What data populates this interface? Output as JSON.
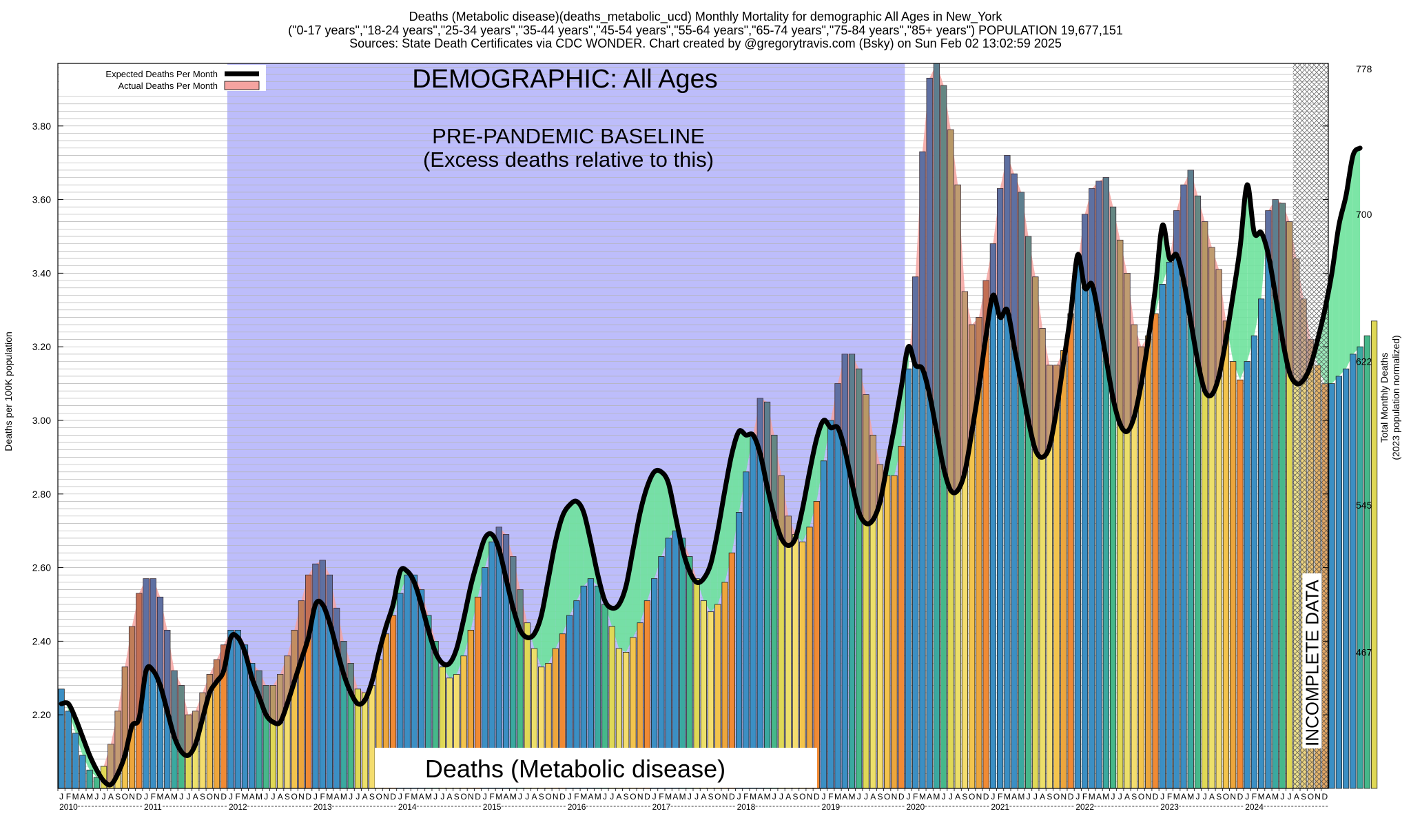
{
  "header": {
    "line1": "Deaths (Metabolic disease)(deaths_metabolic_ucd) Monthly Mortality for demographic All Ages in New_York",
    "line2": "(\"0-17 years\",\"18-24 years\",\"25-34 years\",\"35-44 years\",\"45-54 years\",\"55-64 years\",\"65-74 years\",\"75-84 years\",\"85+ years\") POPULATION 19,677,151",
    "line3": "Sources: State Death Certificates via CDC WONDER.              Chart created by @gregorytravis.com (Bsky) on Sun Feb 02 13:02:59 2025"
  },
  "chart_data": {
    "type": "bar",
    "title": "Deaths (Metabolic disease)(deaths_metabolic_ucd) Monthly Mortality for demographic All Ages in New_York",
    "ylabel": "Deaths per 100K population",
    "y2label": [
      "Total Monthly Deaths",
      "(2023 population normalized)"
    ],
    "ylim": [
      2.0,
      3.97
    ],
    "y_ticks": [
      2.2,
      2.4,
      2.6,
      2.8,
      3.0,
      3.2,
      3.4,
      3.6,
      3.8
    ],
    "y_tick_labels": [
      "2.20",
      "2.40",
      "2.60",
      "2.80",
      "3.00",
      "3.20",
      "3.40",
      "3.60",
      "3.80"
    ],
    "y2_ticks": [
      {
        "label": "467",
        "y": 2.37
      },
      {
        "label": "545",
        "y": 2.77
      },
      {
        "label": "622",
        "y": 3.16
      },
      {
        "label": "700",
        "y": 3.56
      },
      {
        "label": "778",
        "y": 3.955
      }
    ],
    "start": "2010-01",
    "month_letters": [
      "J",
      "F",
      "M",
      "A",
      "M",
      "J",
      "J",
      "A",
      "S",
      "O",
      "N",
      "D"
    ],
    "years": [
      "2010",
      "2011",
      "2012",
      "2013",
      "2014",
      "2015",
      "2016",
      "2017",
      "2018",
      "2019",
      "2020",
      "2021",
      "2022",
      "2023",
      "2024"
    ],
    "grid": true,
    "legend_position": "top-left",
    "legend": [
      {
        "label": "Expected Deaths Per Month",
        "color": "#000000"
      },
      {
        "label": "Actual Deaths Per Month",
        "color": "#f5a3a0"
      }
    ],
    "annotations": {
      "demographic": "DEMOGRAPHIC: All Ages",
      "baseline_title": "PRE-PANDEMIC BASELINE",
      "baseline_sub": "(Excess deaths relative to this)",
      "cause": "Deaths (Metabolic disease)",
      "incomplete": "INCOMPLETE DATA"
    },
    "baseline_period": {
      "start": "2012-01",
      "end": "2019-12"
    },
    "incomplete_period": {
      "start": "2024-08",
      "end": "2024-12"
    },
    "series": [
      {
        "name": "Actual Deaths Per Month",
        "values": [
          2.27,
          2.21,
          2.15,
          2.09,
          2.05,
          2.03,
          2.06,
          2.12,
          2.21,
          2.33,
          2.44,
          2.53,
          2.57,
          2.57,
          2.52,
          2.43,
          2.32,
          2.28,
          2.2,
          2.21,
          2.26,
          2.31,
          2.35,
          2.39,
          2.43,
          2.43,
          2.39,
          2.34,
          2.32,
          2.28,
          2.28,
          2.31,
          2.36,
          2.43,
          2.51,
          2.58,
          2.61,
          2.62,
          2.58,
          2.49,
          2.4,
          2.34,
          2.27,
          2.26,
          2.28,
          2.35,
          2.42,
          2.47,
          2.53,
          2.58,
          2.58,
          2.54,
          2.47,
          2.4,
          2.33,
          2.3,
          2.31,
          2.36,
          2.43,
          2.52,
          2.6,
          2.67,
          2.71,
          2.69,
          2.63,
          2.54,
          2.45,
          2.38,
          2.33,
          2.34,
          2.38,
          2.42,
          2.47,
          2.51,
          2.55,
          2.57,
          2.55,
          2.5,
          2.44,
          2.38,
          2.37,
          2.41,
          2.45,
          2.51,
          2.57,
          2.63,
          2.68,
          2.7,
          2.68,
          2.63,
          2.57,
          2.51,
          2.48,
          2.5,
          2.56,
          2.64,
          2.75,
          2.86,
          2.96,
          3.06,
          3.05,
          2.96,
          2.85,
          2.74,
          2.69,
          2.67,
          2.71,
          2.78,
          2.89,
          3.0,
          3.1,
          3.18,
          3.18,
          3.14,
          3.07,
          2.96,
          2.88,
          2.85,
          2.85,
          2.93,
          3.14,
          3.39,
          3.73,
          3.93,
          3.97,
          3.91,
          3.79,
          3.64,
          3.35,
          3.26,
          3.28,
          3.38,
          3.48,
          3.63,
          3.72,
          3.67,
          3.62,
          3.5,
          3.39,
          3.25,
          3.15,
          3.15,
          3.19,
          3.29,
          3.43,
          3.56,
          3.63,
          3.65,
          3.66,
          3.58,
          3.49,
          3.4,
          3.26,
          3.2,
          3.23,
          3.29,
          3.37,
          3.43,
          3.57,
          3.64,
          3.68,
          3.61,
          3.54,
          3.47,
          3.41,
          3.27,
          3.16,
          3.11,
          3.16,
          3.23,
          3.33,
          3.57,
          3.6,
          3.59,
          3.54,
          3.44,
          3.33,
          3.22,
          3.15,
          3.1,
          3.1,
          3.12,
          3.14,
          3.18,
          3.2,
          3.23,
          3.27
        ]
      },
      {
        "name": "Expected Deaths Per Month",
        "values": [
          2.23,
          2.23,
          2.19,
          2.14,
          2.09,
          2.05,
          2.02,
          2.01,
          2.04,
          2.09,
          2.17,
          2.19,
          2.32,
          2.32,
          2.28,
          2.21,
          2.14,
          2.1,
          2.09,
          2.12,
          2.19,
          2.26,
          2.29,
          2.32,
          2.41,
          2.41,
          2.37,
          2.3,
          2.25,
          2.2,
          2.18,
          2.18,
          2.23,
          2.29,
          2.35,
          2.41,
          2.5,
          2.5,
          2.45,
          2.38,
          2.31,
          2.26,
          2.23,
          2.24,
          2.29,
          2.37,
          2.44,
          2.5,
          2.59,
          2.59,
          2.56,
          2.5,
          2.43,
          2.37,
          2.34,
          2.34,
          2.38,
          2.46,
          2.55,
          2.62,
          2.68,
          2.69,
          2.65,
          2.57,
          2.49,
          2.43,
          2.41,
          2.42,
          2.47,
          2.57,
          2.67,
          2.74,
          2.77,
          2.78,
          2.75,
          2.67,
          2.58,
          2.51,
          2.49,
          2.5,
          2.55,
          2.65,
          2.75,
          2.82,
          2.86,
          2.86,
          2.83,
          2.74,
          2.65,
          2.59,
          2.56,
          2.57,
          2.61,
          2.7,
          2.81,
          2.91,
          2.97,
          2.96,
          2.96,
          2.91,
          2.82,
          2.74,
          2.68,
          2.66,
          2.68,
          2.76,
          2.86,
          2.95,
          3.0,
          2.98,
          2.98,
          2.92,
          2.83,
          2.75,
          2.72,
          2.73,
          2.78,
          2.88,
          2.98,
          3.09,
          3.2,
          3.15,
          3.14,
          3.07,
          2.97,
          2.87,
          2.81,
          2.81,
          2.86,
          2.97,
          3.09,
          3.23,
          3.34,
          3.28,
          3.3,
          3.2,
          3.1,
          3.0,
          2.92,
          2.9,
          2.93,
          3.03,
          3.16,
          3.29,
          3.45,
          3.36,
          3.37,
          3.28,
          3.17,
          3.06,
          2.99,
          2.97,
          3.01,
          3.1,
          3.22,
          3.36,
          3.53,
          3.44,
          3.45,
          3.38,
          3.27,
          3.16,
          3.08,
          3.07,
          3.12,
          3.22,
          3.34,
          3.47,
          3.64,
          3.51,
          3.51,
          3.45,
          3.34,
          3.22,
          3.13,
          3.1,
          3.11,
          3.15,
          3.22,
          3.3,
          3.4,
          3.53,
          3.61,
          3.72,
          3.74
        ]
      }
    ]
  }
}
